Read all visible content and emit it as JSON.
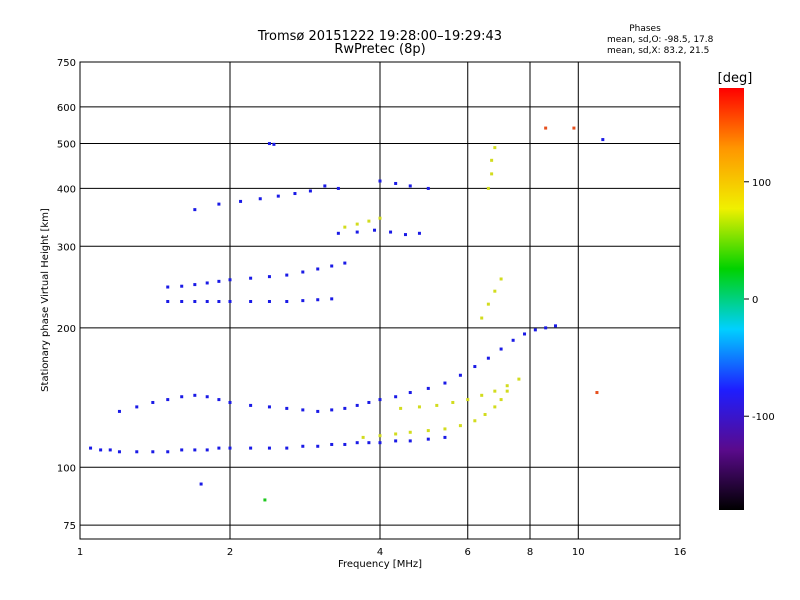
{
  "chart_data": {
    "type": "scatter",
    "title": "Tromsø 20151222 19:28:00–19:29:43",
    "subtitle": "RwPretec (8p)",
    "xlabel": "Frequency [MHz]",
    "ylabel": "Stationary phase Virtual Height [km]",
    "x_scale": "log",
    "y_scale": "log",
    "xlim": [
      1,
      16
    ],
    "ylim": [
      70,
      750
    ],
    "x_ticks": [
      1,
      2,
      4,
      6,
      8,
      10,
      16
    ],
    "y_ticks": [
      75,
      100,
      200,
      300,
      400,
      500,
      600,
      750
    ],
    "grid": true,
    "stats": {
      "heading": "Phases",
      "line1": "mean, sd,O:  -98.5, 17.8",
      "line2": "mean, sd,X:   83.2, 21.5"
    },
    "colorbar": {
      "label": "[deg]",
      "range": [
        -180,
        180
      ],
      "ticks": [
        -100,
        0,
        100
      ],
      "colormap": [
        "#000000",
        "#5a0a8c",
        "#1e1eff",
        "#00d0ff",
        "#00d200",
        "#f0f000",
        "#ff9600",
        "#ff0000"
      ]
    },
    "series": [
      {
        "color": "#1a1ae6",
        "points": [
          [
            1.05,
            110
          ],
          [
            1.1,
            109
          ],
          [
            1.15,
            109
          ],
          [
            1.2,
            108
          ],
          [
            1.3,
            108
          ],
          [
            1.4,
            108
          ],
          [
            1.5,
            108
          ],
          [
            1.6,
            109
          ],
          [
            1.7,
            109
          ],
          [
            1.8,
            109
          ],
          [
            1.9,
            110
          ],
          [
            2.0,
            110
          ],
          [
            2.2,
            110
          ],
          [
            2.4,
            110
          ],
          [
            2.6,
            110
          ],
          [
            2.8,
            111
          ],
          [
            3.0,
            111
          ],
          [
            3.2,
            112
          ],
          [
            3.4,
            112
          ],
          [
            3.6,
            113
          ],
          [
            3.8,
            113
          ],
          [
            4.0,
            113
          ],
          [
            4.3,
            114
          ],
          [
            4.6,
            114
          ],
          [
            5.0,
            115
          ],
          [
            5.4,
            116
          ]
        ]
      },
      {
        "color": "#1a1ae6",
        "points": [
          [
            1.2,
            132
          ],
          [
            1.3,
            135
          ],
          [
            1.4,
            138
          ],
          [
            1.5,
            140
          ],
          [
            1.6,
            142
          ],
          [
            1.7,
            143
          ],
          [
            1.8,
            142
          ],
          [
            1.9,
            140
          ],
          [
            2.0,
            138
          ],
          [
            2.2,
            136
          ],
          [
            2.4,
            135
          ],
          [
            2.6,
            134
          ],
          [
            2.8,
            133
          ],
          [
            3.0,
            132
          ],
          [
            3.2,
            133
          ],
          [
            3.4,
            134
          ],
          [
            3.6,
            136
          ],
          [
            3.8,
            138
          ],
          [
            4.0,
            140
          ],
          [
            4.3,
            142
          ],
          [
            4.6,
            145
          ],
          [
            5.0,
            148
          ],
          [
            5.4,
            152
          ],
          [
            5.8,
            158
          ],
          [
            6.2,
            165
          ],
          [
            6.6,
            172
          ],
          [
            7.0,
            180
          ],
          [
            7.4,
            188
          ],
          [
            7.8,
            194
          ],
          [
            8.2,
            198
          ],
          [
            8.6,
            200
          ],
          [
            9.0,
            202
          ]
        ]
      },
      {
        "color": "#1a1ae6",
        "points": [
          [
            1.5,
            228
          ],
          [
            1.6,
            228
          ],
          [
            1.7,
            228
          ],
          [
            1.8,
            228
          ],
          [
            1.9,
            228
          ],
          [
            2.0,
            228
          ],
          [
            2.2,
            228
          ],
          [
            2.4,
            228
          ],
          [
            2.6,
            228
          ],
          [
            2.8,
            229
          ],
          [
            3.0,
            230
          ],
          [
            3.2,
            231
          ]
        ]
      },
      {
        "color": "#1a1ae6",
        "points": [
          [
            1.5,
            245
          ],
          [
            1.6,
            246
          ],
          [
            1.7,
            248
          ],
          [
            1.8,
            250
          ],
          [
            1.9,
            252
          ],
          [
            2.0,
            254
          ],
          [
            2.2,
            256
          ],
          [
            2.4,
            258
          ],
          [
            2.6,
            260
          ],
          [
            2.8,
            264
          ],
          [
            3.0,
            268
          ],
          [
            3.2,
            272
          ],
          [
            3.4,
            276
          ]
        ]
      },
      {
        "color": "#1a1ae6",
        "points": [
          [
            1.7,
            360
          ],
          [
            1.9,
            370
          ],
          [
            2.1,
            375
          ],
          [
            2.3,
            380
          ],
          [
            2.5,
            385
          ],
          [
            2.7,
            390
          ],
          [
            2.9,
            395
          ],
          [
            3.1,
            405
          ],
          [
            3.3,
            400
          ]
        ]
      },
      {
        "color": "#1a1ae6",
        "points": [
          [
            3.3,
            320
          ],
          [
            3.6,
            322
          ],
          [
            3.9,
            325
          ],
          [
            4.2,
            322
          ],
          [
            4.5,
            318
          ],
          [
            4.8,
            320
          ]
        ]
      },
      {
        "color": "#1a1ae6",
        "points": [
          [
            4.0,
            415
          ],
          [
            4.3,
            410
          ],
          [
            4.6,
            405
          ],
          [
            5.0,
            400
          ]
        ]
      },
      {
        "color": "#1a1ae6",
        "points": [
          [
            2.4,
            500
          ],
          [
            2.45,
            498
          ]
        ]
      },
      {
        "color": "#d2dc1e",
        "points": [
          [
            3.7,
            116
          ],
          [
            4.0,
            117
          ],
          [
            4.3,
            118
          ],
          [
            4.6,
            119
          ],
          [
            5.0,
            120
          ],
          [
            5.4,
            121
          ],
          [
            5.8,
            123
          ],
          [
            6.2,
            126
          ],
          [
            6.5,
            130
          ],
          [
            6.8,
            135
          ],
          [
            7.0,
            140
          ],
          [
            7.2,
            146
          ]
        ]
      },
      {
        "color": "#d2dc1e",
        "points": [
          [
            4.4,
            134
          ],
          [
            4.8,
            135
          ],
          [
            5.2,
            136
          ],
          [
            5.6,
            138
          ],
          [
            6.0,
            140
          ],
          [
            6.4,
            143
          ],
          [
            6.8,
            146
          ],
          [
            7.2,
            150
          ],
          [
            7.6,
            155
          ]
        ]
      },
      {
        "color": "#d2dc1e",
        "points": [
          [
            6.6,
            400
          ],
          [
            6.7,
            430
          ],
          [
            6.7,
            460
          ],
          [
            6.8,
            490
          ]
        ]
      },
      {
        "color": "#d2dc1e",
        "points": [
          [
            3.4,
            330
          ],
          [
            3.6,
            335
          ],
          [
            3.8,
            340
          ],
          [
            4.0,
            345
          ]
        ]
      },
      {
        "color": "#d2dc1e",
        "points": [
          [
            6.4,
            210
          ],
          [
            6.6,
            225
          ],
          [
            6.8,
            240
          ],
          [
            7.0,
            255
          ]
        ]
      },
      {
        "color": "#e6501e",
        "points": [
          [
            8.6,
            540
          ],
          [
            9.8,
            540
          ],
          [
            10.9,
            145
          ]
        ]
      },
      {
        "color": "#1ec81e",
        "points": [
          [
            2.35,
            85
          ]
        ]
      },
      {
        "color": "#1a1ae6",
        "points": [
          [
            1.75,
            92
          ],
          [
            11.2,
            510
          ]
        ]
      }
    ]
  }
}
